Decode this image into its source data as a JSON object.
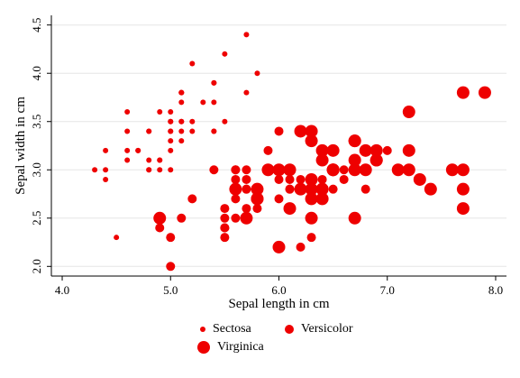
{
  "chart_data": {
    "type": "scatter",
    "xlabel": "Sepal length in cm",
    "ylabel": "Sepal width in cm",
    "xlim": [
      3.9,
      8.1
    ],
    "ylim": [
      1.9,
      4.6
    ],
    "xticks": [
      "4.0",
      "6.0",
      "5.0",
      "7.0",
      "8.0"
    ],
    "xtick_values": [
      4.0,
      6.0,
      5.0,
      7.0,
      8.0
    ],
    "yticks": [
      "2.0",
      "2.5",
      "3.0",
      "3.5",
      "4.0",
      "4.5"
    ],
    "ytick_values": [
      2.0,
      2.5,
      3.0,
      3.5,
      4.0,
      4.5
    ],
    "grid": true,
    "legend_position": "bottom",
    "marker_color": "#ee0000",
    "series": [
      {
        "name": "Sectosa",
        "marker_scale": 1,
        "points": [
          [
            5.1,
            3.5
          ],
          [
            4.9,
            3.0
          ],
          [
            4.7,
            3.2
          ],
          [
            4.6,
            3.1
          ],
          [
            5.0,
            3.6
          ],
          [
            5.4,
            3.9
          ],
          [
            4.6,
            3.4
          ],
          [
            5.0,
            3.4
          ],
          [
            4.4,
            2.9
          ],
          [
            4.9,
            3.1
          ],
          [
            5.4,
            3.7
          ],
          [
            4.8,
            3.4
          ],
          [
            4.8,
            3.0
          ],
          [
            4.3,
            3.0
          ],
          [
            5.8,
            4.0
          ],
          [
            5.7,
            4.4
          ],
          [
            5.4,
            3.9
          ],
          [
            5.1,
            3.5
          ],
          [
            5.7,
            3.8
          ],
          [
            5.1,
            3.8
          ],
          [
            5.4,
            3.4
          ],
          [
            5.1,
            3.7
          ],
          [
            4.6,
            3.6
          ],
          [
            5.1,
            3.3
          ],
          [
            4.8,
            3.4
          ],
          [
            5.0,
            3.0
          ],
          [
            5.0,
            3.4
          ],
          [
            5.2,
            3.5
          ],
          [
            5.2,
            3.4
          ],
          [
            4.7,
            3.2
          ],
          [
            4.8,
            3.1
          ],
          [
            5.4,
            3.4
          ],
          [
            5.2,
            4.1
          ],
          [
            5.5,
            4.2
          ],
          [
            4.9,
            3.1
          ],
          [
            5.0,
            3.2
          ],
          [
            5.5,
            3.5
          ],
          [
            4.9,
            3.6
          ],
          [
            4.4,
            3.0
          ],
          [
            5.1,
            3.4
          ],
          [
            5.0,
            3.5
          ],
          [
            4.5,
            2.3
          ],
          [
            4.4,
            3.2
          ],
          [
            5.0,
            3.5
          ],
          [
            5.1,
            3.8
          ],
          [
            4.8,
            3.0
          ],
          [
            5.1,
            3.8
          ],
          [
            4.6,
            3.2
          ],
          [
            5.3,
            3.7
          ],
          [
            5.0,
            3.3
          ]
        ]
      },
      {
        "name": "Versicolor",
        "marker_scale": 2,
        "points": [
          [
            7.0,
            3.2
          ],
          [
            6.4,
            3.2
          ],
          [
            6.9,
            3.1
          ],
          [
            5.5,
            2.3
          ],
          [
            6.5,
            2.8
          ],
          [
            5.7,
            2.8
          ],
          [
            6.3,
            3.3
          ],
          [
            4.9,
            2.4
          ],
          [
            6.6,
            2.9
          ],
          [
            5.2,
            2.7
          ],
          [
            5.0,
            2.0
          ],
          [
            5.9,
            3.0
          ],
          [
            6.0,
            2.2
          ],
          [
            6.1,
            2.9
          ],
          [
            5.6,
            2.9
          ],
          [
            6.7,
            3.1
          ],
          [
            5.6,
            3.0
          ],
          [
            5.8,
            2.7
          ],
          [
            6.2,
            2.2
          ],
          [
            5.6,
            2.5
          ],
          [
            5.9,
            3.2
          ],
          [
            6.1,
            2.8
          ],
          [
            6.3,
            2.5
          ],
          [
            6.1,
            2.8
          ],
          [
            6.4,
            2.9
          ],
          [
            6.6,
            3.0
          ],
          [
            6.8,
            2.8
          ],
          [
            6.7,
            3.0
          ],
          [
            6.0,
            2.9
          ],
          [
            5.7,
            2.6
          ],
          [
            5.5,
            2.4
          ],
          [
            5.5,
            2.4
          ],
          [
            5.8,
            2.7
          ],
          [
            6.0,
            2.7
          ],
          [
            5.4,
            3.0
          ],
          [
            6.0,
            3.4
          ],
          [
            6.7,
            3.1
          ],
          [
            6.3,
            2.3
          ],
          [
            5.6,
            3.0
          ],
          [
            5.5,
            2.5
          ],
          [
            5.5,
            2.6
          ],
          [
            6.1,
            3.0
          ],
          [
            5.8,
            2.6
          ],
          [
            5.0,
            2.3
          ],
          [
            5.6,
            2.7
          ],
          [
            5.7,
            3.0
          ],
          [
            5.7,
            2.9
          ],
          [
            6.2,
            2.9
          ],
          [
            5.1,
            2.5
          ],
          [
            5.7,
            2.8
          ]
        ]
      },
      {
        "name": "Virginica",
        "marker_scale": 3,
        "points": [
          [
            6.3,
            3.3
          ],
          [
            5.8,
            2.7
          ],
          [
            7.1,
            3.0
          ],
          [
            6.3,
            2.9
          ],
          [
            6.5,
            3.0
          ],
          [
            7.6,
            3.0
          ],
          [
            4.9,
            2.5
          ],
          [
            7.3,
            2.9
          ],
          [
            6.7,
            2.5
          ],
          [
            7.2,
            3.6
          ],
          [
            6.5,
            3.2
          ],
          [
            6.4,
            2.7
          ],
          [
            6.8,
            3.0
          ],
          [
            5.7,
            2.5
          ],
          [
            5.8,
            2.8
          ],
          [
            6.4,
            3.2
          ],
          [
            6.5,
            3.0
          ],
          [
            7.7,
            3.8
          ],
          [
            7.7,
            2.6
          ],
          [
            6.0,
            2.2
          ],
          [
            6.9,
            3.2
          ],
          [
            5.6,
            2.8
          ],
          [
            7.7,
            2.8
          ],
          [
            6.3,
            2.7
          ],
          [
            6.7,
            3.3
          ],
          [
            7.2,
            3.2
          ],
          [
            6.2,
            2.8
          ],
          [
            6.1,
            3.0
          ],
          [
            6.4,
            2.8
          ],
          [
            7.2,
            3.0
          ],
          [
            7.4,
            2.8
          ],
          [
            7.9,
            3.8
          ],
          [
            6.4,
            2.8
          ],
          [
            6.3,
            2.8
          ],
          [
            6.1,
            2.6
          ],
          [
            7.7,
            3.0
          ],
          [
            6.3,
            3.4
          ],
          [
            6.4,
            3.1
          ],
          [
            6.0,
            3.0
          ],
          [
            6.9,
            3.1
          ],
          [
            6.7,
            3.1
          ],
          [
            6.9,
            3.1
          ],
          [
            5.8,
            2.7
          ],
          [
            6.8,
            3.2
          ],
          [
            6.7,
            3.3
          ],
          [
            6.7,
            3.0
          ],
          [
            6.3,
            2.5
          ],
          [
            6.5,
            3.0
          ],
          [
            6.2,
            3.4
          ],
          [
            5.9,
            3.0
          ]
        ]
      }
    ]
  }
}
